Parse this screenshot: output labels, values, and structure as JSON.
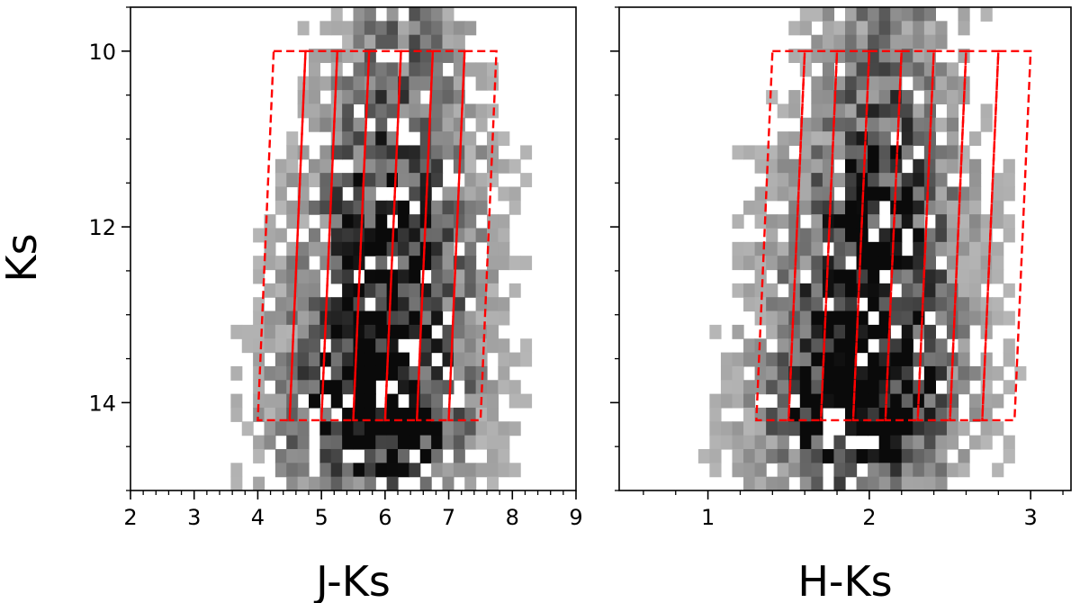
{
  "chart_data": [
    {
      "type": "heatmap",
      "panel": "left",
      "xlabel": "J-Ks",
      "ylabel": "Ks",
      "xlim": [
        2,
        9
      ],
      "ylim": [
        15,
        9.5
      ],
      "y_inverted": true,
      "x_major_ticks": [
        2,
        3,
        4,
        5,
        6,
        7,
        8,
        9
      ],
      "x_tick_labels": [
        "2",
        "3",
        "4",
        "5",
        "6",
        "7",
        "8",
        "9"
      ],
      "x_minor_step": 0.2,
      "y_major_ticks": [
        10,
        12,
        14
      ],
      "y_tick_labels": [
        "10",
        "12",
        "14"
      ],
      "y_minor_step": 0.5,
      "bins": {
        "x_bins": 40,
        "y_bins": 35
      },
      "density_model": {
        "description": "2D histogram of star counts (grayscale, darker = more stars)",
        "peak": {
          "x": 5.7,
          "y": 13.9
        },
        "ridge": {
          "x_center_at_y10": 6.2,
          "x_center_at_y14": 5.9
        }
      },
      "boxes": [
        {
          "top_x": [
            4.25,
            4.75
          ],
          "bottom_x": [
            4.0,
            4.5
          ],
          "y_range": [
            10.0,
            14.2
          ]
        },
        {
          "top_x": [
            4.75,
            5.25
          ],
          "bottom_x": [
            4.5,
            5.0
          ],
          "y_range": [
            10.0,
            14.2
          ]
        },
        {
          "top_x": [
            5.25,
            5.75
          ],
          "bottom_x": [
            5.0,
            5.5
          ],
          "y_range": [
            10.0,
            14.2
          ]
        },
        {
          "top_x": [
            5.75,
            6.25
          ],
          "bottom_x": [
            5.5,
            6.0
          ],
          "y_range": [
            10.0,
            14.2
          ]
        },
        {
          "top_x": [
            6.25,
            6.75
          ],
          "bottom_x": [
            6.0,
            6.5
          ],
          "y_range": [
            10.0,
            14.2
          ]
        },
        {
          "top_x": [
            6.75,
            7.25
          ],
          "bottom_x": [
            6.5,
            7.0
          ],
          "y_range": [
            10.0,
            14.2
          ]
        },
        {
          "top_x": [
            7.25,
            7.75
          ],
          "bottom_x": [
            7.0,
            7.5
          ],
          "y_range": [
            10.0,
            14.2
          ]
        }
      ],
      "box_style": {
        "color": "#ff0000",
        "dash": "dashed"
      },
      "grid": false
    },
    {
      "type": "heatmap",
      "panel": "right",
      "xlabel": "H-Ks",
      "ylabel": "",
      "xlim": [
        0.45,
        3.25
      ],
      "ylim": [
        15,
        9.5
      ],
      "y_inverted": true,
      "x_major_ticks": [
        1,
        2,
        3
      ],
      "x_tick_labels": [
        "1",
        "2",
        "3"
      ],
      "x_minor_step": 0.2,
      "y_major_ticks": [
        10,
        12,
        14
      ],
      "y_tick_labels": [],
      "y_minor_step": 0.5,
      "bins": {
        "x_bins": 40,
        "y_bins": 35
      },
      "density_model": {
        "description": "2D histogram of star counts (grayscale, darker = more stars)",
        "peak": {
          "x": 1.85,
          "y": 13.8
        },
        "ridge": {
          "x_center_at_y10": 2.1,
          "x_center_at_y14": 1.95
        }
      },
      "boxes": [
        {
          "top_x": [
            1.4,
            1.6
          ],
          "bottom_x": [
            1.3,
            1.5
          ],
          "y_range": [
            10.0,
            14.2
          ]
        },
        {
          "top_x": [
            1.6,
            1.8
          ],
          "bottom_x": [
            1.5,
            1.7
          ],
          "y_range": [
            10.0,
            14.2
          ]
        },
        {
          "top_x": [
            1.8,
            2.0
          ],
          "bottom_x": [
            1.7,
            1.9
          ],
          "y_range": [
            10.0,
            14.2
          ]
        },
        {
          "top_x": [
            2.0,
            2.2
          ],
          "bottom_x": [
            1.9,
            2.1
          ],
          "y_range": [
            10.0,
            14.2
          ]
        },
        {
          "top_x": [
            2.2,
            2.4
          ],
          "bottom_x": [
            2.1,
            2.3
          ],
          "y_range": [
            10.0,
            14.2
          ]
        },
        {
          "top_x": [
            2.4,
            2.6
          ],
          "bottom_x": [
            2.3,
            2.5
          ],
          "y_range": [
            10.0,
            14.2
          ]
        },
        {
          "top_x": [
            2.6,
            2.8
          ],
          "bottom_x": [
            2.5,
            2.7
          ],
          "y_range": [
            10.0,
            14.2
          ]
        },
        {
          "top_x": [
            2.8,
            3.0
          ],
          "bottom_x": [
            2.7,
            2.9
          ],
          "y_range": [
            10.0,
            14.2
          ]
        }
      ],
      "box_style": {
        "color": "#ff0000",
        "dash": "dashed"
      },
      "grid": false
    }
  ]
}
